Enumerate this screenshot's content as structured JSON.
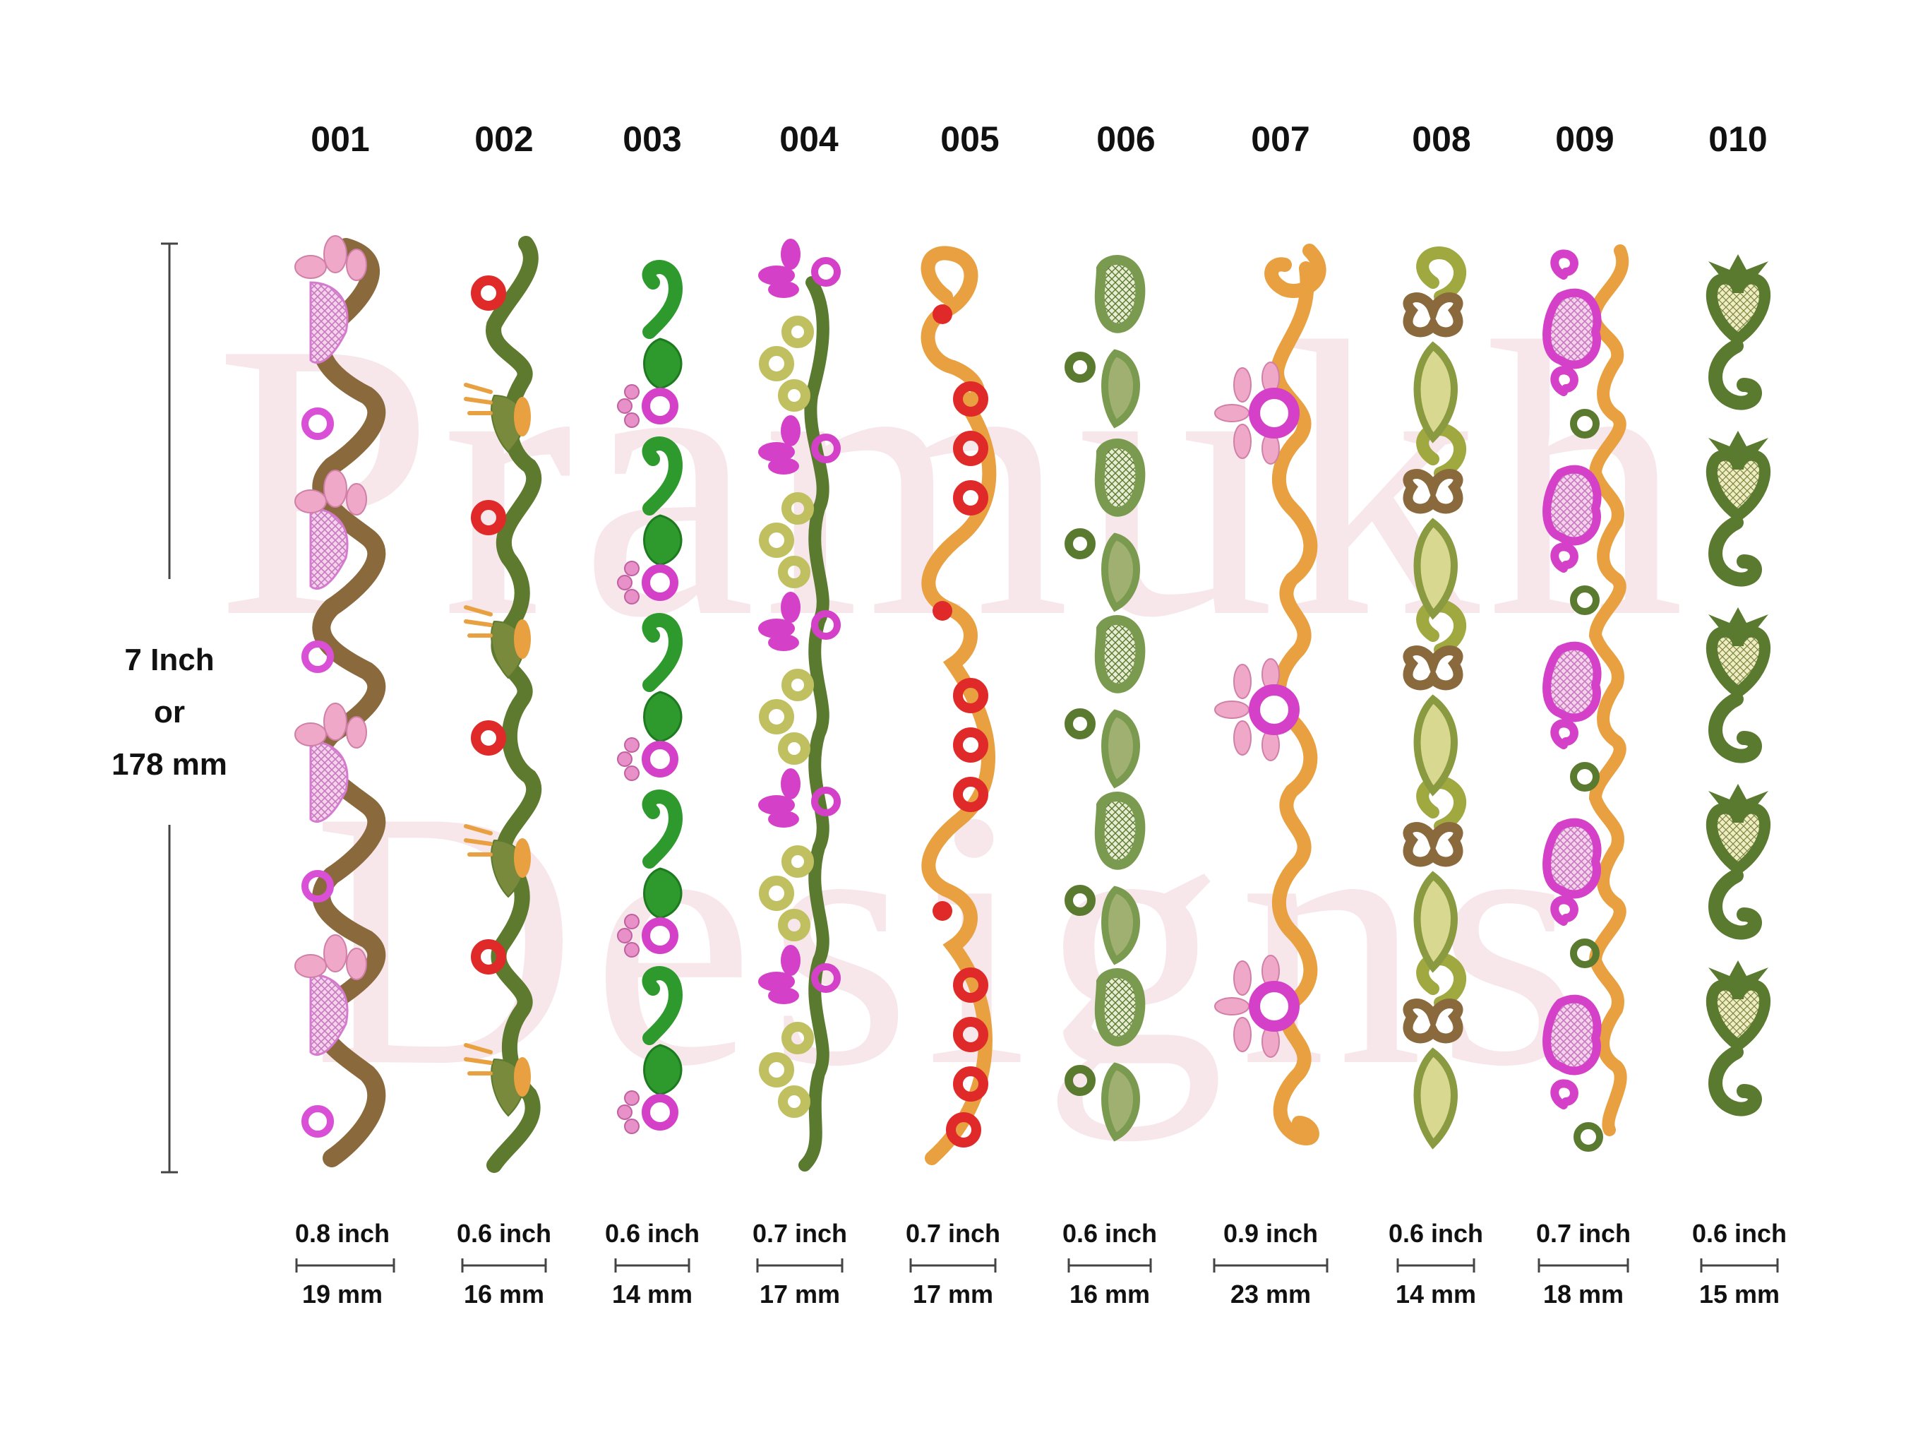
{
  "watermark": {
    "line1": "Pramukh",
    "line2": "Designs"
  },
  "height_label": {
    "line1": "7 Inch",
    "line2": "or",
    "line3": "178 mm"
  },
  "designs": [
    {
      "code": "001",
      "width_inch": "0.8 inch",
      "width_mm": "19 mm",
      "motif": "flower-paisley",
      "colors": [
        "#8a6a3c",
        "#f0a8c8",
        "#d94fd6"
      ]
    },
    {
      "code": "002",
      "width_inch": "0.6 inch",
      "width_mm": "16 mm",
      "motif": "leaf-vine",
      "colors": [
        "#5d7a2e",
        "#e8a040",
        "#e02a2a"
      ]
    },
    {
      "code": "003",
      "width_inch": "0.6 inch",
      "width_mm": "14 mm",
      "motif": "paisley-flower",
      "colors": [
        "#2e9a2e",
        "#d440c8",
        "#e890c8"
      ]
    },
    {
      "code": "004",
      "width_inch": "0.7 inch",
      "width_mm": "17 mm",
      "motif": "tulip-vine",
      "colors": [
        "#5a7a30",
        "#c0c060",
        "#d440c8"
      ]
    },
    {
      "code": "005",
      "width_inch": "0.7 inch",
      "width_mm": "17 mm",
      "motif": "scallop-swirl",
      "colors": [
        "#e8a040",
        "#e02a2a"
      ]
    },
    {
      "code": "006",
      "width_inch": "0.6 inch",
      "width_mm": "16 mm",
      "motif": "lace-paisley",
      "colors": [
        "#7a9a50",
        "#5a7a30"
      ]
    },
    {
      "code": "007",
      "width_inch": "0.9 inch",
      "width_mm": "23 mm",
      "motif": "daisy-swirl",
      "colors": [
        "#e8a040",
        "#d440c8",
        "#f0a8c8"
      ]
    },
    {
      "code": "008",
      "width_inch": "0.6 inch",
      "width_mm": "14 mm",
      "motif": "leaf-swirl",
      "colors": [
        "#a0a840",
        "#8a6a3c",
        "#7a9a50"
      ]
    },
    {
      "code": "009",
      "width_inch": "0.7 inch",
      "width_mm": "18 mm",
      "motif": "lace-swirl",
      "colors": [
        "#d440c8",
        "#e8a040",
        "#5a7a30"
      ]
    },
    {
      "code": "010",
      "width_inch": "0.6 inch",
      "width_mm": "15 mm",
      "motif": "heart-swirl",
      "colors": [
        "#5a7a30",
        "#e8e0a0"
      ]
    }
  ]
}
